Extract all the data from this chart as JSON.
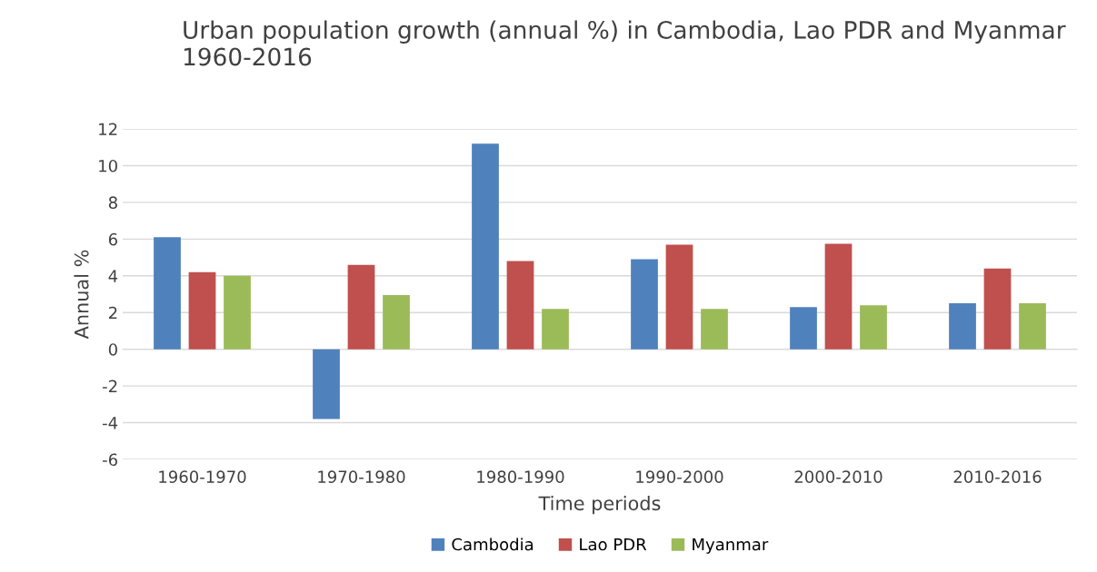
{
  "chart_data": {
    "type": "bar",
    "title": "Urban population growth (annual %) in Cambodia, Lao PDR and Myanmar 1960-2016",
    "xlabel": "Time periods",
    "ylabel": "Annual %",
    "categories": [
      "1960-1970",
      "1970-1980",
      "1980-1990",
      "1990-2000",
      "2000-2010",
      "2010-2016"
    ],
    "series": [
      {
        "name": "Cambodia",
        "color": "#4f81bd",
        "values": [
          6.1,
          -3.8,
          11.2,
          4.9,
          2.3,
          2.5
        ]
      },
      {
        "name": "Lao PDR",
        "color": "#c0504d",
        "values": [
          4.2,
          4.6,
          4.8,
          5.7,
          5.75,
          4.4
        ]
      },
      {
        "name": "Myanmar",
        "color": "#9bbb59",
        "values": [
          4.0,
          2.95,
          2.2,
          2.2,
          2.4,
          2.5
        ]
      }
    ],
    "ylim": [
      -6,
      12
    ],
    "yticks": [
      -6,
      -4,
      -2,
      0,
      2,
      4,
      6,
      8,
      10,
      12
    ],
    "grid": "y",
    "legend": "bottom"
  }
}
